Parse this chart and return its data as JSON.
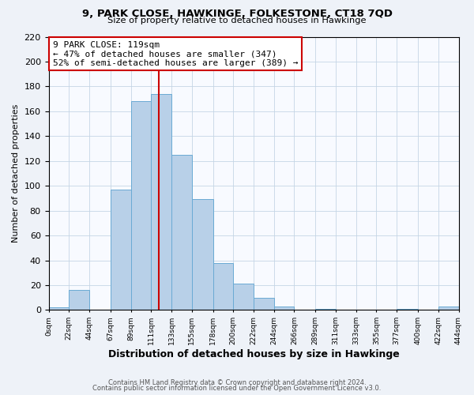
{
  "title": "9, PARK CLOSE, HAWKINGE, FOLKESTONE, CT18 7QD",
  "subtitle": "Size of property relative to detached houses in Hawkinge",
  "xlabel": "Distribution of detached houses by size in Hawkinge",
  "ylabel": "Number of detached properties",
  "bar_color": "#b8d0e8",
  "bar_edge_color": "#6aaad4",
  "marker_line_color": "#cc0000",
  "marker_value": 119,
  "annotation_title": "9 PARK CLOSE: 119sqm",
  "annotation_line1": "← 47% of detached houses are smaller (347)",
  "annotation_line2": "52% of semi-detached houses are larger (389) →",
  "bin_edges": [
    0,
    22,
    44,
    67,
    89,
    111,
    133,
    155,
    178,
    200,
    222,
    244,
    266,
    289,
    311,
    333,
    355,
    377,
    400,
    422,
    444
  ],
  "bin_counts": [
    2,
    16,
    0,
    97,
    168,
    174,
    125,
    89,
    38,
    21,
    10,
    3,
    0,
    1,
    0,
    0,
    0,
    1,
    0,
    3
  ],
  "ylim": [
    0,
    220
  ],
  "yticks": [
    0,
    20,
    40,
    60,
    80,
    100,
    120,
    140,
    160,
    180,
    200,
    220
  ],
  "footer_line1": "Contains HM Land Registry data © Crown copyright and database right 2024.",
  "footer_line2": "Contains public sector information licensed under the Open Government Licence v3.0.",
  "background_color": "#eef2f8",
  "plot_bg_color": "#f8faff"
}
